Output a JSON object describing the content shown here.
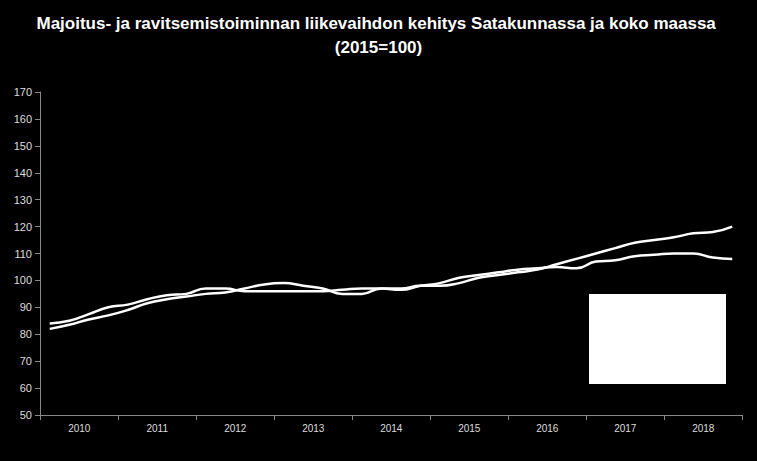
{
  "chart_data": {
    "type": "line",
    "title": "Majoitus- ja ravitsemistoiminnan liikevaihdon kehitys Satakunnassa ja koko maassa (2015=100)",
    "categories": [
      null,
      "2010",
      null,
      null,
      null,
      "2011",
      null,
      null,
      null,
      "2012",
      null,
      null,
      null,
      "2013",
      null,
      null,
      null,
      "2014",
      null,
      null,
      null,
      "2015",
      null,
      null,
      null,
      "2016",
      null,
      null,
      null,
      "2017",
      null,
      null,
      null,
      "2018",
      null,
      null
    ],
    "series": [
      {
        "color": "#ffffff",
        "values": [
          84,
          85,
          87.5,
          90,
          91,
          93,
          94.5,
          95,
          97,
          97,
          96,
          96,
          96,
          96,
          96,
          96.5,
          97,
          97,
          97,
          98,
          98,
          99,
          101,
          102,
          103,
          104,
          106,
          108,
          110,
          112,
          114,
          115,
          116,
          117.5,
          118,
          120
        ]
      },
      {
        "color": "#ffffff",
        "values": [
          82,
          83.5,
          85.5,
          87,
          89,
          91.5,
          93,
          94,
          95,
          95.5,
          97,
          98.5,
          99,
          98,
          97,
          95,
          95,
          97,
          96.5,
          98,
          99,
          101,
          102,
          103,
          104,
          104.5,
          105,
          104.5,
          107,
          107.5,
          109,
          109.5,
          110,
          110,
          108.5,
          108
        ]
      }
    ],
    "ylim": [
      50,
      170
    ],
    "yticks": [
      50,
      60,
      70,
      80,
      90,
      100,
      110,
      120,
      130,
      140,
      150,
      160,
      170
    ],
    "grid": false
  }
}
